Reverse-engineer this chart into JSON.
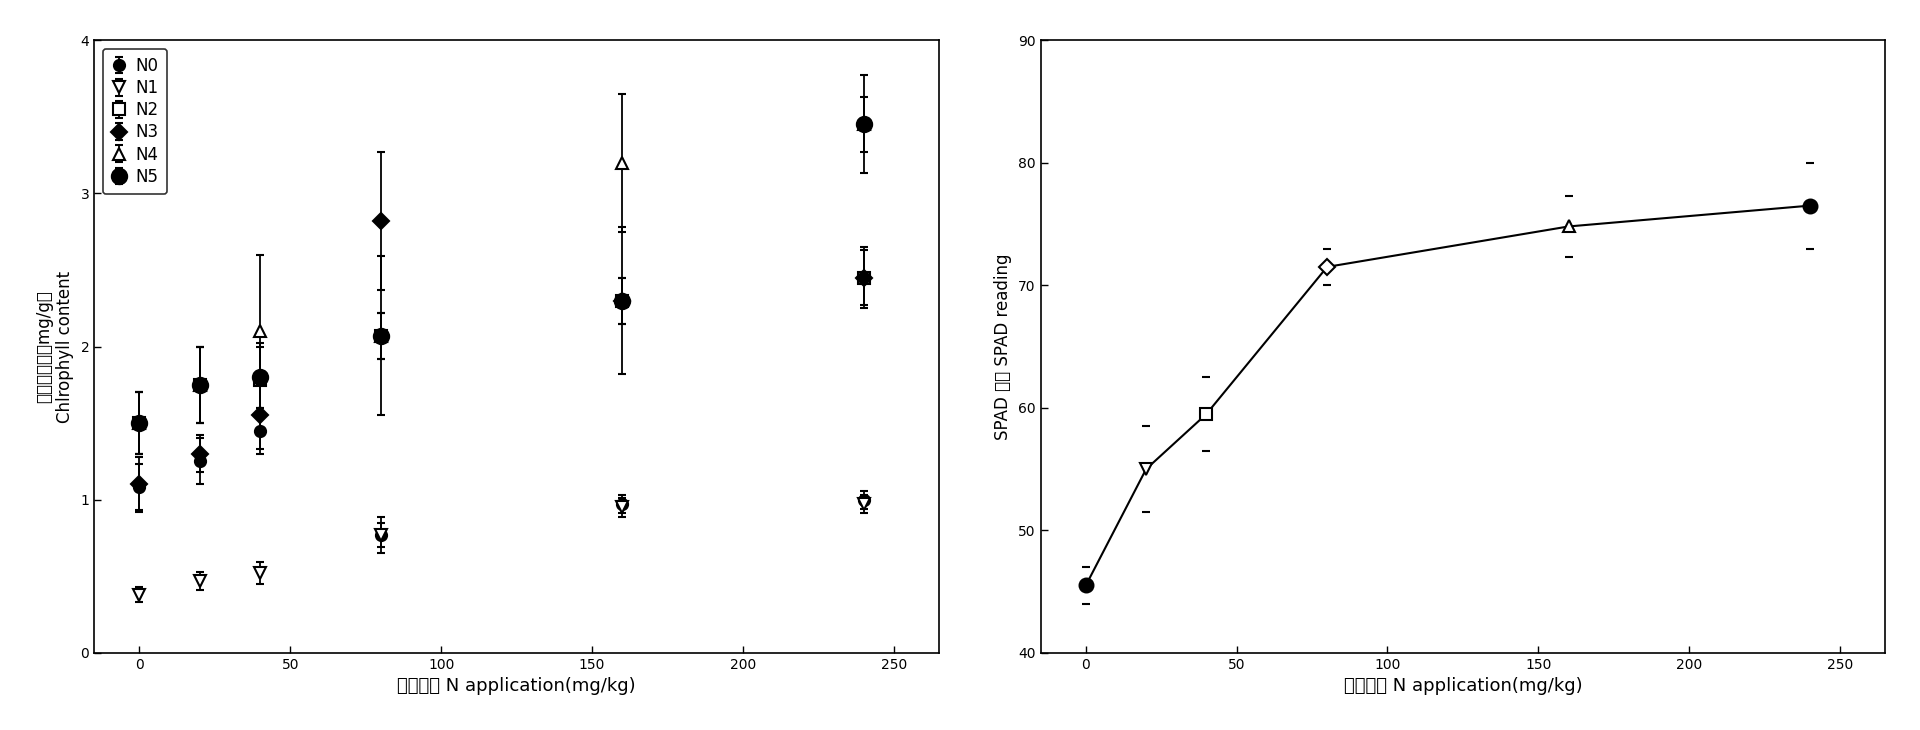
{
  "left_plot": {
    "xlabel_cn": "氮素用量",
    "xlabel_en": " N application(mg/kg)",
    "ylabel_cn": "叶绿素含量（mg/g）",
    "ylabel_en": "Chlrophyll content",
    "xlim": [
      -15,
      265
    ],
    "ylim": [
      0,
      4
    ],
    "xticks": [
      0,
      50,
      100,
      150,
      200,
      250
    ],
    "yticks": [
      0,
      1,
      2,
      3,
      4
    ],
    "series": [
      {
        "label": "N0",
        "x": [
          0,
          20,
          40,
          80,
          160,
          240
        ],
        "y": [
          1.08,
          1.25,
          1.45,
          0.77,
          0.97,
          1.0
        ],
        "yerr": [
          0.15,
          0.15,
          0.15,
          0.08,
          0.06,
          0.06
        ],
        "marker": "o",
        "fillstyle": "full",
        "markersize": 8
      },
      {
        "label": "N1",
        "x": [
          0,
          20,
          40,
          80,
          160,
          240
        ],
        "y": [
          0.38,
          0.47,
          0.52,
          0.77,
          0.95,
          0.97
        ],
        "yerr": [
          0.05,
          0.06,
          0.07,
          0.12,
          0.06,
          0.06
        ],
        "marker": "v",
        "fillstyle": "none",
        "markersize": 8
      },
      {
        "label": "N2",
        "x": [
          0,
          20,
          40,
          80,
          160,
          240
        ],
        "y": [
          1.5,
          1.75,
          1.78,
          2.07,
          2.3,
          2.45
        ],
        "yerr": [
          0.2,
          0.25,
          0.22,
          0.15,
          0.15,
          0.18
        ],
        "marker": "s",
        "fillstyle": "none",
        "markersize": 8
      },
      {
        "label": "N3",
        "x": [
          0,
          20,
          40,
          80,
          160,
          240
        ],
        "y": [
          1.1,
          1.3,
          1.55,
          2.82,
          2.3,
          2.45
        ],
        "yerr": [
          0.18,
          0.12,
          0.22,
          0.45,
          0.48,
          0.2
        ],
        "marker": "D",
        "fillstyle": "full",
        "markersize": 8
      },
      {
        "label": "N4",
        "x": [
          0,
          20,
          40,
          80,
          160,
          240
        ],
        "y": [
          1.5,
          1.75,
          2.1,
          2.07,
          3.2,
          3.45
        ],
        "yerr": [
          0.2,
          0.25,
          0.5,
          0.52,
          0.45,
          0.32
        ],
        "marker": "^",
        "fillstyle": "none",
        "markersize": 9
      },
      {
        "label": "N5",
        "x": [
          0,
          20,
          40,
          80,
          160,
          240
        ],
        "y": [
          1.5,
          1.75,
          1.8,
          2.07,
          2.3,
          3.45
        ],
        "yerr": [
          0.2,
          0.25,
          0.22,
          0.15,
          0.15,
          0.18
        ],
        "marker": "o",
        "fillstyle": "full",
        "markersize": 11
      }
    ]
  },
  "right_plot": {
    "xlabel_cn": "氮素用量",
    "xlabel_en": " N application(mg/kg)",
    "ylabel": "SPAD 读数 SPAD reading",
    "xlim": [
      -15,
      265
    ],
    "ylim": [
      40,
      90
    ],
    "xticks": [
      0,
      50,
      100,
      150,
      200,
      250
    ],
    "yticks": [
      40,
      50,
      60,
      70,
      80,
      90
    ],
    "x": [
      0,
      20,
      40,
      80,
      160,
      240
    ],
    "y": [
      45.5,
      55.0,
      59.5,
      71.5,
      74.8,
      76.5
    ],
    "yerr": [
      1.5,
      3.5,
      3.0,
      1.5,
      2.5,
      3.5
    ],
    "markers": [
      "o",
      "v",
      "s",
      "D",
      "^",
      "o"
    ],
    "fillstyles": [
      "full",
      "none",
      "none",
      "none",
      "none",
      "full"
    ],
    "markersizes": [
      10,
      8,
      8,
      8,
      9,
      10
    ]
  },
  "background_color": "#ffffff"
}
